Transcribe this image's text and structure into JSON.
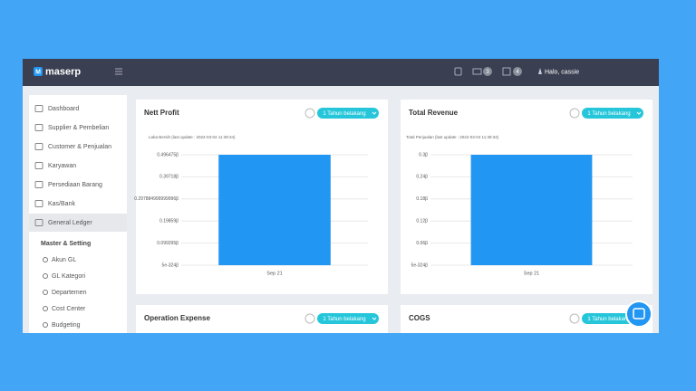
{
  "header": {
    "logo_icon": "M",
    "logo": "maserp",
    "badges": [
      "3",
      "4"
    ],
    "greeting": "Halo, cassie"
  },
  "sidebar": {
    "items": [
      "Dashboard",
      "Supplier & Pembelian",
      "Customer & Penjualan",
      "Karyawan",
      "Persediaan Barang",
      "Kas/Bank",
      "General Ledger"
    ],
    "section": "Master & Setting",
    "subitems": [
      "Akun GL",
      "GL Kategori",
      "Departemen",
      "Cost Center",
      "Budgeting"
    ]
  },
  "chart_data": [
    {
      "type": "bar",
      "title": "Nett Profit",
      "button": "1 Tahun belakang",
      "subtitle": "Laba Bersih (last update : 2022-03-04 11:39:34)",
      "categories": [
        "Sep 21"
      ],
      "values": [
        0.496475
      ],
      "color": "#2196f3",
      "ylim": [
        5e-324,
        0.496475
      ],
      "yticks": [
        {
          "value": 0.496475,
          "label": "0.496475β"
        },
        {
          "value": 0.39718,
          "label": "0.39718β"
        },
        {
          "value": 0.297884999999996,
          "label": "0.297884999999996β"
        },
        {
          "value": 0.19859,
          "label": "0.19859β"
        },
        {
          "value": 0.099295,
          "label": "0.099295β"
        },
        {
          "value": 5e-324,
          "label": "5e-324β"
        }
      ],
      "grid": true
    },
    {
      "type": "bar",
      "title": "Total Revenue",
      "button": "1 Tahun belakang",
      "subtitle": "Total Penjualan (last update : 2022-03-04 11:39:34)",
      "categories": [
        "Sep 21"
      ],
      "values": [
        0.3
      ],
      "color": "#2196f3",
      "ylim": [
        5e-324,
        0.3
      ],
      "yticks": [
        {
          "value": 0.3,
          "label": "0.3β"
        },
        {
          "value": 0.24,
          "label": "0.24β"
        },
        {
          "value": 0.18,
          "label": "0.18β"
        },
        {
          "value": 0.12,
          "label": "0.12β"
        },
        {
          "value": 0.06,
          "label": "0.06β"
        },
        {
          "value": 5e-324,
          "label": "5e-324β"
        }
      ],
      "grid": true
    }
  ],
  "cards": [
    {
      "title": "Operation Expense",
      "button": "1 Tahun belakang"
    },
    {
      "title": "COGS",
      "button": "1 Tahun belakang"
    }
  ]
}
